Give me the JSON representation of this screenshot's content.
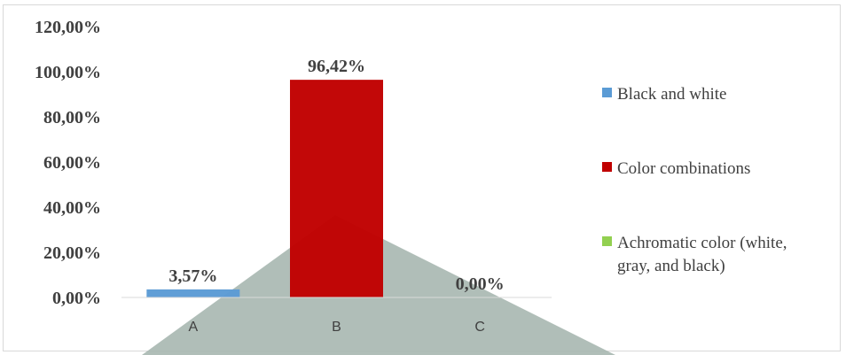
{
  "chart_data": {
    "type": "bar",
    "categories": [
      "A",
      "B",
      "C"
    ],
    "series": [
      {
        "name": "Black and white",
        "category": "A",
        "value": 3.57,
        "label": "3,57%",
        "color": "#5b9bd5"
      },
      {
        "name": "Color combinations",
        "category": "B",
        "value": 96.42,
        "label": "96,42%",
        "color": "#c00000"
      },
      {
        "name": "Achromatic color (white, gray, and black)",
        "category": "C",
        "value": 0.0,
        "label": "0,00%",
        "color": "#92d050"
      }
    ],
    "legend_lines": [
      [
        "Black and white"
      ],
      [
        "Color combinations"
      ],
      [
        "Achromatic color (white,",
        "gray, and black)"
      ]
    ],
    "yticks": [
      {
        "value": 0,
        "label": "0,00%"
      },
      {
        "value": 20,
        "label": "20,00%"
      },
      {
        "value": 40,
        "label": "40,00%"
      },
      {
        "value": 60,
        "label": "60,00%"
      },
      {
        "value": 80,
        "label": "80,00%"
      },
      {
        "value": 100,
        "label": "100,00%"
      },
      {
        "value": 120,
        "label": "120,00%"
      }
    ],
    "ylim": [
      0,
      120
    ],
    "grid": false,
    "legend_position": "right",
    "title": "",
    "xlabel": "",
    "ylabel": ""
  },
  "overlay_color": "#a9b8b2"
}
